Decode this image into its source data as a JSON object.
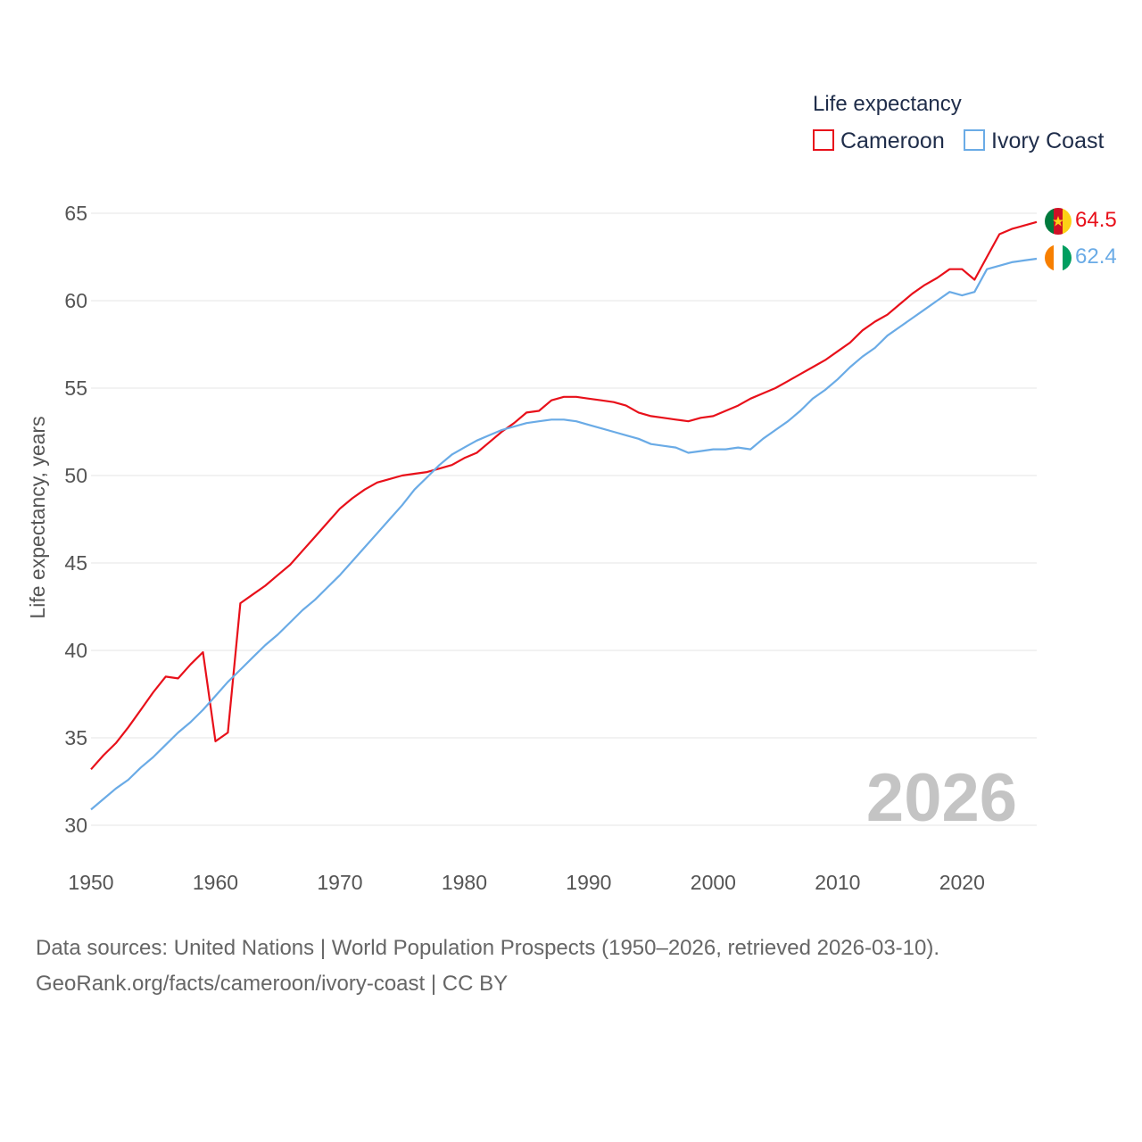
{
  "legend": {
    "title": "Life expectancy",
    "items": [
      {
        "name": "Cameroon",
        "color": "#e8101a"
      },
      {
        "name": "Ivory Coast",
        "color": "#6aabe6"
      }
    ]
  },
  "footer": {
    "line1": "Data sources: United Nations | World Population Prospects (1950–2026, retrieved 2026-03-10).",
    "line2": "GeoRank.org/facts/cameroon/ivory-coast | CC BY"
  },
  "chart_data": {
    "type": "line",
    "title": "Life expectancy",
    "xlabel": "",
    "ylabel": "Life expectancy, years",
    "year_label": "2026",
    "xlim": [
      1950,
      2026
    ],
    "ylim": [
      28,
      66
    ],
    "x_ticks": [
      1950,
      1960,
      1970,
      1980,
      1990,
      2000,
      2010,
      2020
    ],
    "y_ticks": [
      30,
      35,
      40,
      45,
      50,
      55,
      60,
      65
    ],
    "grid": true,
    "legend_position": "top-right",
    "x": [
      1950,
      1951,
      1952,
      1953,
      1954,
      1955,
      1956,
      1957,
      1958,
      1959,
      1960,
      1961,
      1962,
      1963,
      1964,
      1965,
      1966,
      1967,
      1968,
      1969,
      1970,
      1971,
      1972,
      1973,
      1974,
      1975,
      1976,
      1977,
      1978,
      1979,
      1980,
      1981,
      1982,
      1983,
      1984,
      1985,
      1986,
      1987,
      1988,
      1989,
      1990,
      1991,
      1992,
      1993,
      1994,
      1995,
      1996,
      1997,
      1998,
      1999,
      2000,
      2001,
      2002,
      2003,
      2004,
      2005,
      2006,
      2007,
      2008,
      2009,
      2010,
      2011,
      2012,
      2013,
      2014,
      2015,
      2016,
      2017,
      2018,
      2019,
      2020,
      2021,
      2022,
      2023,
      2024,
      2025,
      2026
    ],
    "series": [
      {
        "name": "Cameroon",
        "color": "#e8101a",
        "end_label": "64.5",
        "values": [
          33.2,
          34.0,
          34.7,
          35.6,
          36.6,
          37.6,
          38.5,
          38.4,
          39.2,
          39.9,
          34.8,
          35.3,
          42.7,
          43.2,
          43.7,
          44.3,
          44.9,
          45.7,
          46.5,
          47.3,
          48.1,
          48.7,
          49.2,
          49.6,
          49.8,
          50.0,
          50.1,
          50.2,
          50.4,
          50.6,
          51.0,
          51.3,
          51.9,
          52.5,
          53.0,
          53.6,
          53.7,
          54.3,
          54.5,
          54.5,
          54.4,
          54.3,
          54.2,
          54.0,
          53.6,
          53.4,
          53.3,
          53.2,
          53.1,
          53.3,
          53.4,
          53.7,
          54.0,
          54.4,
          54.7,
          55.0,
          55.4,
          55.8,
          56.2,
          56.6,
          57.1,
          57.6,
          58.3,
          58.8,
          59.2,
          59.8,
          60.4,
          60.9,
          61.3,
          61.8,
          61.8,
          61.2,
          62.5,
          63.8,
          64.1,
          64.3,
          64.5
        ]
      },
      {
        "name": "Ivory Coast",
        "color": "#6aabe6",
        "end_label": "62.4",
        "values": [
          30.9,
          31.5,
          32.1,
          32.6,
          33.3,
          33.9,
          34.6,
          35.3,
          35.9,
          36.6,
          37.4,
          38.2,
          38.9,
          39.6,
          40.3,
          40.9,
          41.6,
          42.3,
          42.9,
          43.6,
          44.3,
          45.1,
          45.9,
          46.7,
          47.5,
          48.3,
          49.2,
          49.9,
          50.6,
          51.2,
          51.6,
          52.0,
          52.3,
          52.6,
          52.8,
          53.0,
          53.1,
          53.2,
          53.2,
          53.1,
          52.9,
          52.7,
          52.5,
          52.3,
          52.1,
          51.8,
          51.7,
          51.6,
          51.3,
          51.4,
          51.5,
          51.5,
          51.6,
          51.5,
          52.1,
          52.6,
          53.1,
          53.7,
          54.4,
          54.9,
          55.5,
          56.2,
          56.8,
          57.3,
          58.0,
          58.5,
          59.0,
          59.5,
          60.0,
          60.5,
          60.3,
          60.5,
          61.8,
          62.0,
          62.2,
          62.3,
          62.4
        ]
      }
    ]
  }
}
